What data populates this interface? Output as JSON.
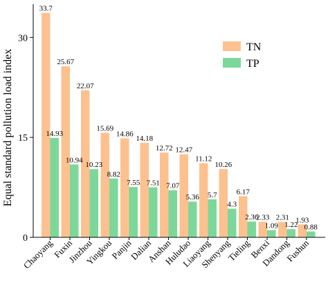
{
  "chart_data": {
    "type": "bar",
    "ylabel": "Equal standard pollution load index",
    "ylim": [
      0,
      35
    ],
    "yticks": [
      0,
      15,
      30
    ],
    "grid": false,
    "legend_position": "top-right",
    "categories": [
      "Chaoyang",
      "Fuxin",
      "Jinzhou",
      "Yingkou",
      "Panjin",
      "Dalian",
      "Anshan",
      "Huludao",
      "Liaoyang",
      "Shenyang",
      "Tieling",
      "Benxi",
      "Dandong",
      "Fushun"
    ],
    "series": [
      {
        "name": "TN",
        "color": "#FDC18F",
        "values": [
          33.7,
          25.67,
          22.07,
          15.69,
          14.86,
          14.18,
          12.72,
          12.47,
          11.12,
          10.26,
          6.17,
          2.33,
          2.31,
          1.93
        ],
        "labels": [
          "33.7",
          "25.67",
          "22.07",
          "15.69",
          "14.86",
          "14.18",
          "12.72",
          "12.47",
          "11.12",
          "10.26",
          "6.17",
          "2.33",
          "2.31",
          "1.93"
        ]
      },
      {
        "name": "TP",
        "color": "#7CD89A",
        "values": [
          14.93,
          10.94,
          10.23,
          8.82,
          7.55,
          7.51,
          7.07,
          5.36,
          5.7,
          4.3,
          2.36,
          1.09,
          1.22,
          0.88
        ],
        "labels": [
          "14.93",
          "10.94",
          "10.23",
          "8.82",
          "7.55",
          "7.51",
          "7.07",
          "5.36",
          "5.7",
          "4.3",
          "2.36",
          "1.09",
          "1.22",
          "0.88"
        ]
      }
    ]
  }
}
